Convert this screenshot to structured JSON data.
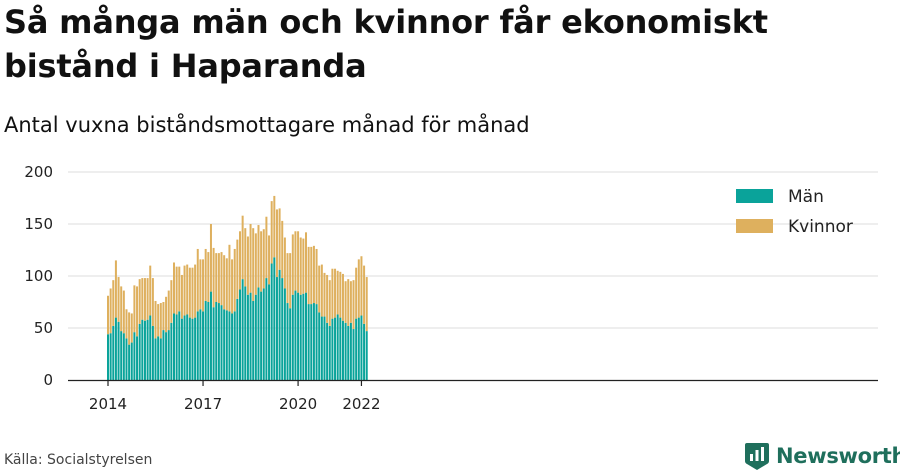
{
  "title": "Så många män och kvinnor får ekonomiskt bistånd i Haparanda",
  "subtitle": "Antal vuxna biståndsmottagare månad för månad",
  "source": "Källa: Socialstyrelsen",
  "brand": "Newsworthy",
  "colors": {
    "man": "#0aa39a",
    "kvinnor": "#deb05e",
    "brand": "#1f6f5c"
  },
  "chart_data": {
    "type": "bar",
    "stacked": true,
    "xlabel": "",
    "ylabel": "",
    "ylim": [
      0,
      200
    ],
    "yticks": [
      0,
      50,
      100,
      150,
      200
    ],
    "xticks": [
      {
        "label": "2014",
        "index": 0
      },
      {
        "label": "2017",
        "index": 36
      },
      {
        "label": "2020",
        "index": 72
      },
      {
        "label": "2022",
        "index": 96
      }
    ],
    "grid": true,
    "legend_position": "top-right",
    "start": "2014-01",
    "series": [
      {
        "name": "Män",
        "color": "#0aa39a",
        "values": [
          44,
          45,
          52,
          60,
          56,
          47,
          45,
          40,
          34,
          36,
          46,
          42,
          54,
          58,
          57,
          58,
          62,
          52,
          40,
          42,
          40,
          48,
          46,
          48,
          55,
          64,
          63,
          66,
          59,
          62,
          63,
          60,
          59,
          60,
          66,
          68,
          66,
          76,
          75,
          85,
          70,
          75,
          74,
          72,
          68,
          67,
          66,
          64,
          66,
          78,
          87,
          97,
          90,
          82,
          84,
          76,
          82,
          89,
          85,
          88,
          98,
          92,
          112,
          118,
          99,
          106,
          98,
          88,
          74,
          69,
          82,
          86,
          84,
          82,
          83,
          84,
          73,
          73,
          74,
          73,
          65,
          61,
          61,
          55,
          52,
          59,
          60,
          63,
          60,
          57,
          55,
          52,
          55,
          49,
          59,
          60,
          62,
          54,
          47
        ]
      },
      {
        "name": "Kvinnor",
        "color": "#deb05e",
        "values": [
          37,
          43,
          44,
          55,
          43,
          43,
          41,
          28,
          31,
          28,
          45,
          48,
          43,
          40,
          41,
          40,
          48,
          46,
          36,
          31,
          34,
          27,
          34,
          38,
          41,
          49,
          46,
          43,
          42,
          48,
          48,
          48,
          49,
          51,
          60,
          48,
          50,
          50,
          48,
          65,
          57,
          47,
          48,
          51,
          52,
          50,
          64,
          52,
          60,
          57,
          56,
          61,
          56,
          56,
          66,
          70,
          59,
          60,
          58,
          57,
          59,
          47,
          60,
          59,
          65,
          59,
          55,
          49,
          48,
          53,
          58,
          57,
          59,
          55,
          53,
          58,
          55,
          55,
          55,
          53,
          45,
          50,
          42,
          46,
          44,
          48,
          47,
          42,
          44,
          45,
          40,
          45,
          40,
          47,
          49,
          56,
          57,
          56,
          52
        ]
      }
    ]
  },
  "legend": [
    {
      "label": "Män",
      "color": "#0aa39a"
    },
    {
      "label": "Kvinnor",
      "color": "#deb05e"
    }
  ]
}
